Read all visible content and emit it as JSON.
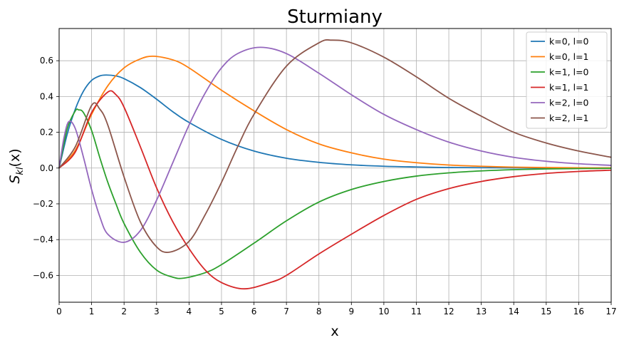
{
  "chart_data": {
    "type": "line",
    "title": "Sturmiany",
    "xlabel": "x",
    "ylabel": "S_kl(x)",
    "ylabel_main": "S",
    "ylabel_sub": "kl",
    "ylabel_arg": "(x)",
    "xlim": [
      0,
      17
    ],
    "ylim": [
      -0.75,
      0.78
    ],
    "xticks": [
      0,
      1,
      2,
      3,
      4,
      5,
      6,
      7,
      8,
      9,
      10,
      11,
      12,
      13,
      14,
      15,
      16,
      17
    ],
    "xtick_labels": [
      "0",
      "1",
      "2",
      "3",
      "4",
      "5",
      "6",
      "7",
      "8",
      "9",
      "10",
      "11",
      "12",
      "13",
      "14",
      "15",
      "16",
      "17"
    ],
    "yticks": [
      -0.6,
      -0.4,
      -0.2,
      0.0,
      0.2,
      0.4,
      0.6
    ],
    "ytick_labels": [
      "−0.6",
      "−0.4",
      "−0.2",
      "0.0",
      "0.2",
      "0.4",
      "0.6"
    ],
    "grid": true,
    "legend_position": "top-right",
    "series": [
      {
        "name": "k=0, l=0",
        "color": "#1f77b4",
        "x": [
          0,
          0.25,
          0.5,
          0.75,
          1,
          1.25,
          1.45,
          1.75,
          2,
          2.5,
          3,
          3.5,
          4,
          5,
          6,
          7,
          8,
          9,
          10,
          11,
          12,
          13,
          14,
          15,
          16,
          17
        ],
        "y": [
          0,
          0.19,
          0.33,
          0.43,
          0.49,
          0.515,
          0.52,
          0.515,
          0.5,
          0.45,
          0.385,
          0.315,
          0.255,
          0.16,
          0.095,
          0.055,
          0.032,
          0.018,
          0.01,
          0.006,
          0.003,
          0.002,
          0.001,
          0.0005,
          0.0002,
          0.0001
        ]
      },
      {
        "name": "k=0, l=1",
        "color": "#ff7f0e",
        "x": [
          0,
          0.5,
          1,
          1.5,
          2,
          2.5,
          2.9,
          3.5,
          4,
          5,
          6,
          7,
          8,
          9,
          10,
          11,
          12,
          13,
          14,
          15,
          16,
          17
        ],
        "y": [
          0,
          0.1,
          0.3,
          0.46,
          0.56,
          0.61,
          0.625,
          0.605,
          0.56,
          0.435,
          0.32,
          0.215,
          0.135,
          0.085,
          0.05,
          0.03,
          0.017,
          0.01,
          0.005,
          0.003,
          0.0015,
          0.0008
        ]
      },
      {
        "name": "k=1, l=0",
        "color": "#2ca02c",
        "x": [
          0,
          0.25,
          0.5,
          0.6,
          0.75,
          1,
          1.25,
          1.5,
          1.75,
          2,
          2.5,
          3,
          3.5,
          3.85,
          4.5,
          5,
          6,
          7,
          8,
          9,
          10,
          11,
          12,
          13,
          14,
          15,
          16,
          17
        ],
        "y": [
          0,
          0.22,
          0.32,
          0.325,
          0.31,
          0.21,
          0.06,
          -0.08,
          -0.2,
          -0.31,
          -0.47,
          -0.57,
          -0.61,
          -0.615,
          -0.585,
          -0.54,
          -0.42,
          -0.295,
          -0.19,
          -0.12,
          -0.075,
          -0.045,
          -0.027,
          -0.016,
          -0.009,
          -0.005,
          -0.003,
          -0.0015
        ]
      },
      {
        "name": "k=1, l=1",
        "color": "#d62728",
        "x": [
          0,
          0.5,
          1,
          1.5,
          1.75,
          2,
          2.5,
          3,
          3.5,
          4,
          4.5,
          5,
          5.7,
          6.5,
          7,
          8,
          9,
          10,
          11,
          12,
          13,
          14,
          15,
          16,
          17
        ],
        "y": [
          0,
          0.09,
          0.31,
          0.425,
          0.41,
          0.34,
          0.12,
          -0.11,
          -0.3,
          -0.45,
          -0.57,
          -0.64,
          -0.675,
          -0.64,
          -0.6,
          -0.48,
          -0.37,
          -0.265,
          -0.175,
          -0.115,
          -0.075,
          -0.048,
          -0.03,
          -0.019,
          -0.012
        ]
      },
      {
        "name": "k=2, l=0",
        "color": "#9467bd",
        "x": [
          0,
          0.15,
          0.3,
          0.5,
          0.75,
          1,
          1.25,
          1.5,
          2,
          2.5,
          3,
          3.5,
          4,
          4.5,
          5,
          5.5,
          6.2,
          7,
          8,
          9,
          10,
          11,
          12,
          13,
          14,
          15,
          16,
          17
        ],
        "y": [
          0,
          0.17,
          0.26,
          0.22,
          0.06,
          -0.12,
          -0.27,
          -0.37,
          -0.415,
          -0.35,
          -0.18,
          0.03,
          0.24,
          0.42,
          0.56,
          0.64,
          0.675,
          0.64,
          0.53,
          0.41,
          0.3,
          0.215,
          0.145,
          0.095,
          0.06,
          0.038,
          0.024,
          0.015
        ]
      },
      {
        "name": "k=2, l=1",
        "color": "#8c564b",
        "x": [
          0,
          0.5,
          1,
          1.25,
          1.5,
          2,
          2.5,
          3,
          3.4,
          4,
          4.5,
          5,
          5.5,
          6,
          7,
          8,
          8.4,
          9,
          10,
          11,
          12,
          13,
          14,
          15,
          16,
          17
        ],
        "y": [
          0,
          0.12,
          0.35,
          0.33,
          0.24,
          -0.05,
          -0.3,
          -0.44,
          -0.47,
          -0.41,
          -0.26,
          -0.08,
          0.12,
          0.3,
          0.57,
          0.7,
          0.715,
          0.7,
          0.62,
          0.51,
          0.39,
          0.29,
          0.2,
          0.14,
          0.095,
          0.06
        ]
      }
    ]
  }
}
